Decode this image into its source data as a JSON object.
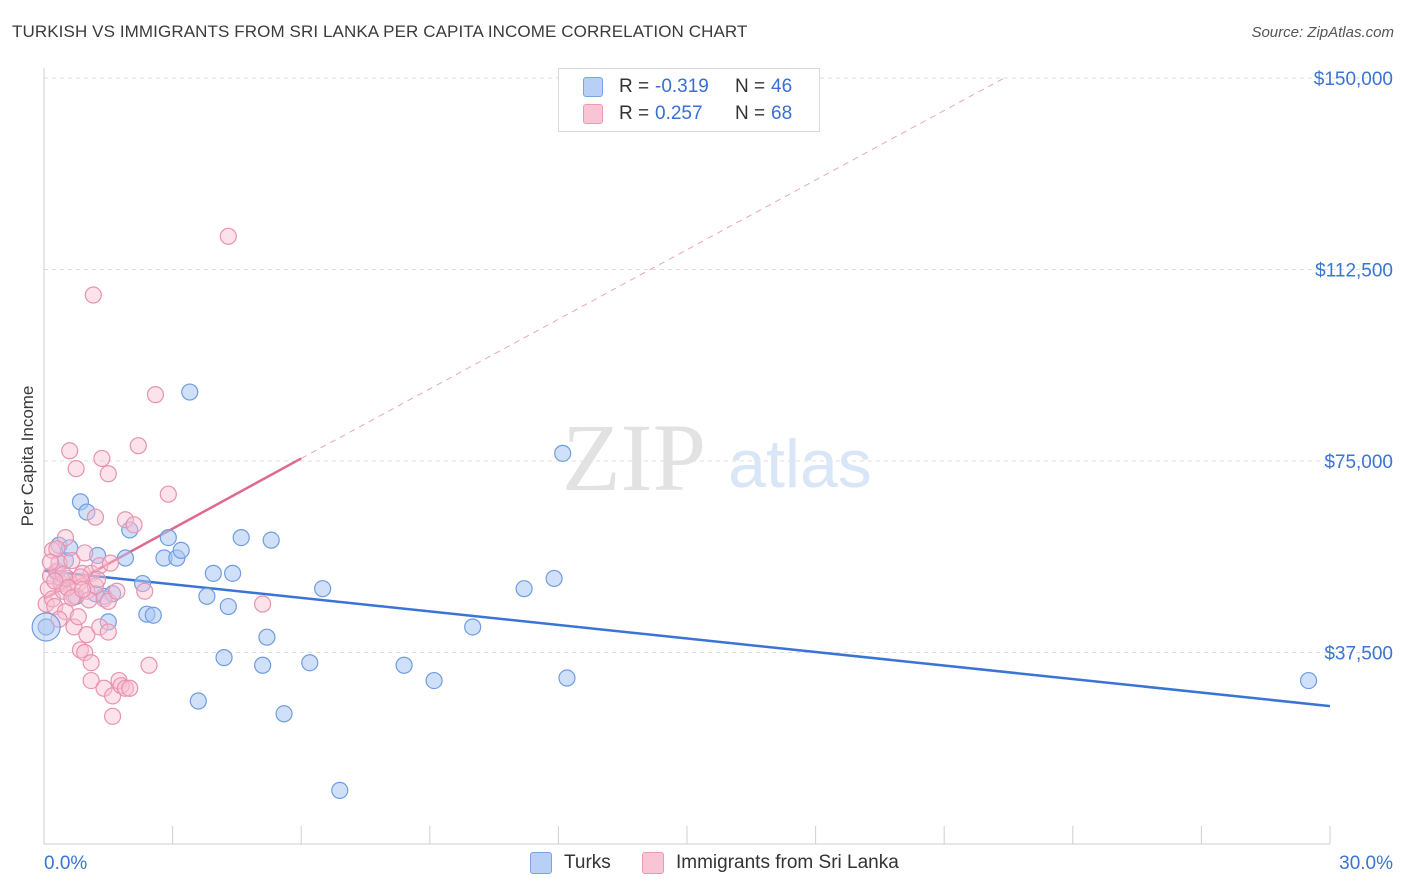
{
  "title": "TURKISH VS IMMIGRANTS FROM SRI LANKA PER CAPITA INCOME CORRELATION CHART",
  "source": "Source: ZipAtlas.com",
  "watermark": {
    "zip": "ZIP",
    "atlas": "atlas"
  },
  "legend": {
    "rows": [
      {
        "r_label": "R =",
        "r_value": "-0.319",
        "n_label": "N =",
        "n_value": "46",
        "fill": "#b8d0f5",
        "stroke": "#7aa3e0"
      },
      {
        "r_label": "R =",
        "r_value": "0.257",
        "n_label": "N =",
        "n_value": "68",
        "fill": "#f9c5d5",
        "stroke": "#e89ab3"
      }
    ]
  },
  "bottom_legend": {
    "items": [
      {
        "label": "Turks",
        "fill": "#b8d0f5",
        "stroke": "#7aa3e0"
      },
      {
        "label": "Immigrants from Sri Lanka",
        "fill": "#f9c5d5",
        "stroke": "#e89ab3"
      }
    ]
  },
  "chart_data": {
    "type": "scatter",
    "title": "TURKISH VS IMMIGRANTS FROM SRI LANKA PER CAPITA INCOME CORRELATION CHART",
    "xlabel": "",
    "ylabel": "Per Capita Income",
    "xlim": [
      0,
      30
    ],
    "ylim": [
      0,
      155000
    ],
    "x_tick_labels": {
      "min": "0.0%",
      "max": "30.0%"
    },
    "y_ticks": [
      37500,
      75000,
      112500,
      150000
    ],
    "y_tick_labels": [
      "$37,500",
      "$75,000",
      "$112,500",
      "$150,000"
    ],
    "grid": true,
    "colors": {
      "turks": "#3a74d4",
      "sri_lanka": "#e0698f",
      "axis_label": "#3a74d4"
    },
    "series": [
      {
        "name": "Turks",
        "points": [
          [
            0.05,
            42500
          ],
          [
            0.3,
            53200
          ],
          [
            0.35,
            58500
          ],
          [
            0.5,
            55500
          ],
          [
            0.75,
            48500
          ],
          [
            0.85,
            67000
          ],
          [
            1.0,
            65000
          ],
          [
            1.25,
            56500
          ],
          [
            1.4,
            48500
          ],
          [
            1.5,
            43500
          ],
          [
            1.6,
            49000
          ],
          [
            1.9,
            56000
          ],
          [
            2.0,
            61500
          ],
          [
            2.3,
            51000
          ],
          [
            2.4,
            45000
          ],
          [
            2.55,
            44800
          ],
          [
            2.8,
            56000
          ],
          [
            2.9,
            60000
          ],
          [
            3.1,
            56000
          ],
          [
            3.2,
            57500
          ],
          [
            3.4,
            88500
          ],
          [
            3.6,
            28000
          ],
          [
            3.8,
            48500
          ],
          [
            3.95,
            53000
          ],
          [
            4.2,
            36500
          ],
          [
            4.3,
            46500
          ],
          [
            4.4,
            53000
          ],
          [
            4.6,
            60000
          ],
          [
            5.1,
            35000
          ],
          [
            5.2,
            40500
          ],
          [
            5.3,
            59500
          ],
          [
            5.6,
            25500
          ],
          [
            6.2,
            35500
          ],
          [
            6.5,
            50000
          ],
          [
            6.9,
            10500
          ],
          [
            8.4,
            35000
          ],
          [
            9.1,
            32000
          ],
          [
            10.0,
            42500
          ],
          [
            11.2,
            50000
          ],
          [
            11.9,
            52000
          ],
          [
            12.1,
            76500
          ],
          [
            12.2,
            32500
          ],
          [
            29.5,
            32000
          ],
          [
            0.6,
            58000
          ],
          [
            1.2,
            49000
          ],
          [
            0.4,
            52000
          ]
        ]
      },
      {
        "name": "Immigrants from Sri Lanka",
        "points": [
          [
            0.05,
            47000
          ],
          [
            0.1,
            50000
          ],
          [
            0.15,
            52500
          ],
          [
            0.2,
            48000
          ],
          [
            0.2,
            57500
          ],
          [
            0.25,
            46500
          ],
          [
            0.3,
            53500
          ],
          [
            0.35,
            55000
          ],
          [
            0.4,
            51000
          ],
          [
            0.45,
            49500
          ],
          [
            0.5,
            60000
          ],
          [
            0.5,
            45500
          ],
          [
            0.55,
            52000
          ],
          [
            0.6,
            77000
          ],
          [
            0.65,
            55500
          ],
          [
            0.7,
            48500
          ],
          [
            0.7,
            42500
          ],
          [
            0.75,
            73500
          ],
          [
            0.8,
            51000
          ],
          [
            0.8,
            44500
          ],
          [
            0.85,
            38000
          ],
          [
            0.9,
            53000
          ],
          [
            0.95,
            57000
          ],
          [
            0.95,
            37500
          ],
          [
            1.0,
            49500
          ],
          [
            1.0,
            41000
          ],
          [
            1.1,
            53000
          ],
          [
            1.1,
            35500
          ],
          [
            1.1,
            32000
          ],
          [
            1.2,
            64000
          ],
          [
            1.2,
            50500
          ],
          [
            1.3,
            54500
          ],
          [
            1.3,
            42500
          ],
          [
            1.35,
            75500
          ],
          [
            1.4,
            30500
          ],
          [
            1.4,
            48000
          ],
          [
            1.5,
            72500
          ],
          [
            1.5,
            47500
          ],
          [
            1.5,
            41500
          ],
          [
            1.55,
            55000
          ],
          [
            1.6,
            29000
          ],
          [
            1.6,
            25000
          ],
          [
            1.7,
            49500
          ],
          [
            1.75,
            32000
          ],
          [
            1.8,
            31000
          ],
          [
            1.9,
            30500
          ],
          [
            1.9,
            63500
          ],
          [
            2.0,
            30500
          ],
          [
            2.1,
            62500
          ],
          [
            2.2,
            78000
          ],
          [
            2.35,
            49500
          ],
          [
            2.45,
            35000
          ],
          [
            2.6,
            88000
          ],
          [
            2.9,
            68500
          ],
          [
            4.3,
            119000
          ],
          [
            5.1,
            47000
          ],
          [
            1.15,
            107500
          ],
          [
            0.3,
            57800
          ],
          [
            0.45,
            52800
          ],
          [
            0.55,
            50200
          ],
          [
            0.65,
            48200
          ],
          [
            0.85,
            52300
          ],
          [
            1.05,
            47800
          ],
          [
            0.35,
            44000
          ],
          [
            0.15,
            55200
          ],
          [
            0.25,
            51500
          ],
          [
            0.9,
            49800
          ],
          [
            1.25,
            51800
          ]
        ]
      }
    ],
    "trendlines": [
      {
        "series": "Turks",
        "from": [
          0,
          53500
        ],
        "to": [
          30,
          27000
        ],
        "style": "solid"
      },
      {
        "series": "Immigrants from Sri Lanka",
        "from": [
          0,
          48000
        ],
        "to": [
          6,
          75500
        ],
        "style": "solid"
      },
      {
        "series": "Immigrants from Sri Lanka",
        "from": [
          6,
          75500
        ],
        "to": [
          22.4,
          150000
        ],
        "style": "dashed"
      }
    ]
  }
}
